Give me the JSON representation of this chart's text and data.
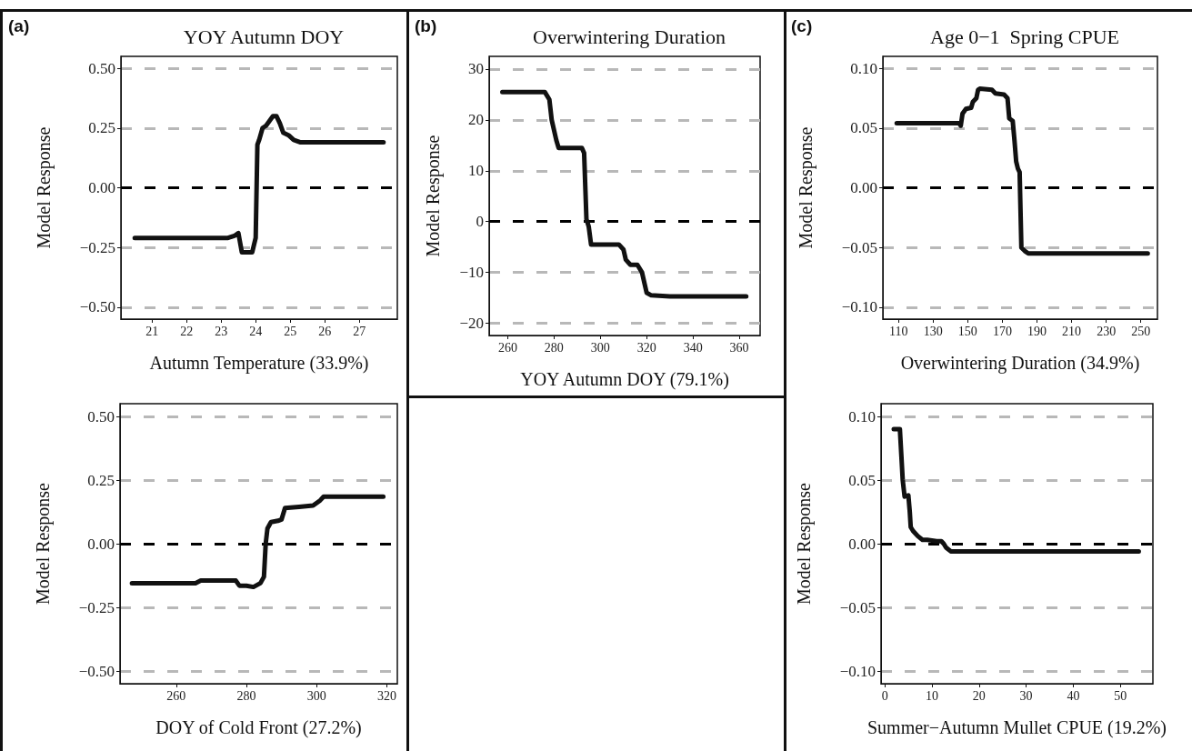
{
  "chart_data": [
    {
      "type": "line",
      "title": "YOY Autumn DOY",
      "annotations": [
        "(a)"
      ],
      "xlabel": "Autumn Temperature (33.9%)",
      "ylabel": "Model Response",
      "xlim": [
        20.1,
        28.1
      ],
      "xticks": [
        21,
        22,
        23,
        24,
        25,
        26,
        27
      ],
      "ylim": [
        -0.55,
        0.55
      ],
      "yticks": [
        {
          "value": -0.5,
          "label": "−0.50"
        },
        {
          "value": -0.25,
          "label": "−0.25"
        },
        {
          "value": 0,
          "label": "0.00"
        },
        {
          "value": 0.25,
          "label": "0.25"
        },
        {
          "value": 0.5,
          "label": "0.50"
        }
      ],
      "grid": "y",
      "marker": "none",
      "line_style": "solid",
      "ref_lines": [
        {
          "axis": "y",
          "value": 0,
          "color": "#000000",
          "line_style": "dashed"
        }
      ],
      "x": [
        20.5,
        23.2,
        23.4,
        23.5,
        23.6,
        23.9,
        24.0,
        24.05,
        24.1,
        24.2,
        24.3,
        24.4,
        24.5,
        24.6,
        24.7,
        24.8,
        24.95,
        25.1,
        25.3,
        27.7
      ],
      "series": [
        {
          "color": "#111111",
          "values": [
            -0.21,
            -0.21,
            -0.2,
            -0.19,
            -0.27,
            -0.27,
            -0.21,
            0.18,
            0.2,
            0.25,
            0.26,
            0.28,
            0.3,
            0.3,
            0.27,
            0.23,
            0.22,
            0.2,
            0.19,
            0.19
          ]
        }
      ]
    },
    {
      "type": "line",
      "title": "Overwintering Duration",
      "annotations": [
        "(b)"
      ],
      "xlabel": "YOY Autumn DOY (79.1%)",
      "ylabel": "Model Response",
      "xlim": [
        252,
        369
      ],
      "xticks": [
        260,
        280,
        300,
        320,
        340,
        360
      ],
      "ylim": [
        -22.4,
        32.5
      ],
      "yticks": [
        {
          "value": -20,
          "label": "−20"
        },
        {
          "value": -10,
          "label": "−10"
        },
        0,
        10,
        20,
        30
      ],
      "grid": "y",
      "marker": "none",
      "line_style": "solid",
      "ref_lines": [
        {
          "axis": "y",
          "value": 0,
          "color": "#000000",
          "line_style": "dashed"
        }
      ],
      "x": [
        257.7,
        276,
        278,
        279,
        281,
        282,
        292,
        293,
        294,
        295,
        296,
        308,
        310,
        311,
        313,
        316,
        318,
        319,
        320,
        322,
        330,
        363
      ],
      "series": [
        {
          "color": "#111111",
          "values": [
            25.5,
            25.5,
            24,
            20,
            16,
            14.5,
            14.5,
            13.5,
            0.5,
            -1,
            -4.5,
            -4.5,
            -5.5,
            -7.5,
            -8.5,
            -8.5,
            -10,
            -12,
            -14,
            -14.5,
            -14.7,
            -14.7
          ]
        }
      ]
    },
    {
      "type": "line",
      "title": "Age 0−1  Spring CPUE",
      "annotations": [
        "(c)"
      ],
      "xlabel": "Overwintering Duration (34.9%)",
      "ylabel": "Model Response",
      "xlim": [
        101,
        259.6
      ],
      "xticks": [
        110,
        130,
        150,
        170,
        190,
        210,
        230,
        250
      ],
      "ylim": [
        -0.11,
        0.11
      ],
      "yticks": [
        {
          "value": -0.1,
          "label": "−0.10"
        },
        {
          "value": -0.05,
          "label": "−0.05"
        },
        {
          "value": 0,
          "label": "0.00"
        },
        {
          "value": 0.05,
          "label": "0.05"
        },
        {
          "value": 0.1,
          "label": "0.10"
        }
      ],
      "grid": "y",
      "marker": "none",
      "line_style": "solid",
      "ref_lines": [
        {
          "axis": "y",
          "value": 0,
          "color": "#000000",
          "line_style": "dashed"
        }
      ],
      "x": [
        109,
        145,
        146,
        147,
        149,
        152,
        153,
        155,
        156,
        157,
        164,
        166,
        171,
        173,
        174,
        176,
        177,
        178,
        179,
        180,
        181,
        183,
        185,
        254
      ],
      "series": [
        {
          "color": "#111111",
          "values": [
            0.054,
            0.054,
            0.052,
            0.062,
            0.066,
            0.067,
            0.072,
            0.075,
            0.082,
            0.083,
            0.082,
            0.079,
            0.078,
            0.075,
            0.058,
            0.056,
            0.04,
            0.022,
            0.016,
            0.013,
            -0.05,
            -0.053,
            -0.055,
            -0.055
          ]
        }
      ]
    },
    {
      "type": "line",
      "xlabel": "DOY of Cold Front (27.2%)",
      "ylabel": "Model Response",
      "xlim": [
        244,
        323
      ],
      "xticks": [
        260,
        280,
        300,
        320
      ],
      "ylim": [
        -0.55,
        0.55
      ],
      "yticks": [
        {
          "value": -0.5,
          "label": "−0.50"
        },
        {
          "value": -0.25,
          "label": "−0.25"
        },
        {
          "value": 0,
          "label": "0.00"
        },
        {
          "value": 0.25,
          "label": "0.25"
        },
        {
          "value": 0.5,
          "label": "0.50"
        }
      ],
      "grid": "y",
      "marker": "none",
      "line_style": "solid",
      "ref_lines": [
        {
          "axis": "y",
          "value": 0,
          "color": "#000000",
          "line_style": "dashed"
        }
      ],
      "x": [
        247.4,
        265.5,
        267,
        277,
        278,
        280,
        282,
        284,
        285,
        285.5,
        286,
        287,
        289,
        290,
        291,
        295,
        299,
        300,
        301,
        302,
        319
      ],
      "series": [
        {
          "color": "#111111",
          "values": [
            -0.155,
            -0.155,
            -0.145,
            -0.145,
            -0.165,
            -0.165,
            -0.17,
            -0.155,
            -0.13,
            0.0,
            0.06,
            0.085,
            0.09,
            0.095,
            0.14,
            0.145,
            0.15,
            0.16,
            0.17,
            0.185,
            0.185
          ]
        }
      ]
    },
    {
      "type": "line",
      "xlabel": "Summer−Autumn Mullet CPUE (19.2%)",
      "ylabel": "Model Response",
      "xlim": [
        -0.8,
        56.9
      ],
      "xticks": [
        0,
        10,
        20,
        30,
        40,
        50
      ],
      "ylim": [
        -0.11,
        0.11
      ],
      "yticks": [
        {
          "value": -0.1,
          "label": "−0.10"
        },
        {
          "value": -0.05,
          "label": "−0.05"
        },
        {
          "value": 0,
          "label": "0.00"
        },
        {
          "value": 0.05,
          "label": "0.05"
        },
        {
          "value": 0.1,
          "label": "0.10"
        }
      ],
      "grid": "y",
      "marker": "none",
      "line_style": "solid",
      "ref_lines": [
        {
          "axis": "y",
          "value": 0,
          "color": "#000000",
          "line_style": "dashed"
        }
      ],
      "x": [
        1.9,
        3.2,
        3.5,
        3.8,
        4.2,
        5,
        5.3,
        5.5,
        6,
        7,
        8,
        9,
        11,
        12,
        12.5,
        13,
        14,
        53.9
      ],
      "series": [
        {
          "color": "#111111",
          "values": [
            0.09,
            0.09,
            0.07,
            0.05,
            0.037,
            0.038,
            0.025,
            0.013,
            0.01,
            0.006,
            0.003,
            0.003,
            0.002,
            0.002,
            0.0,
            -0.003,
            -0.006,
            -0.006
          ]
        }
      ]
    }
  ]
}
